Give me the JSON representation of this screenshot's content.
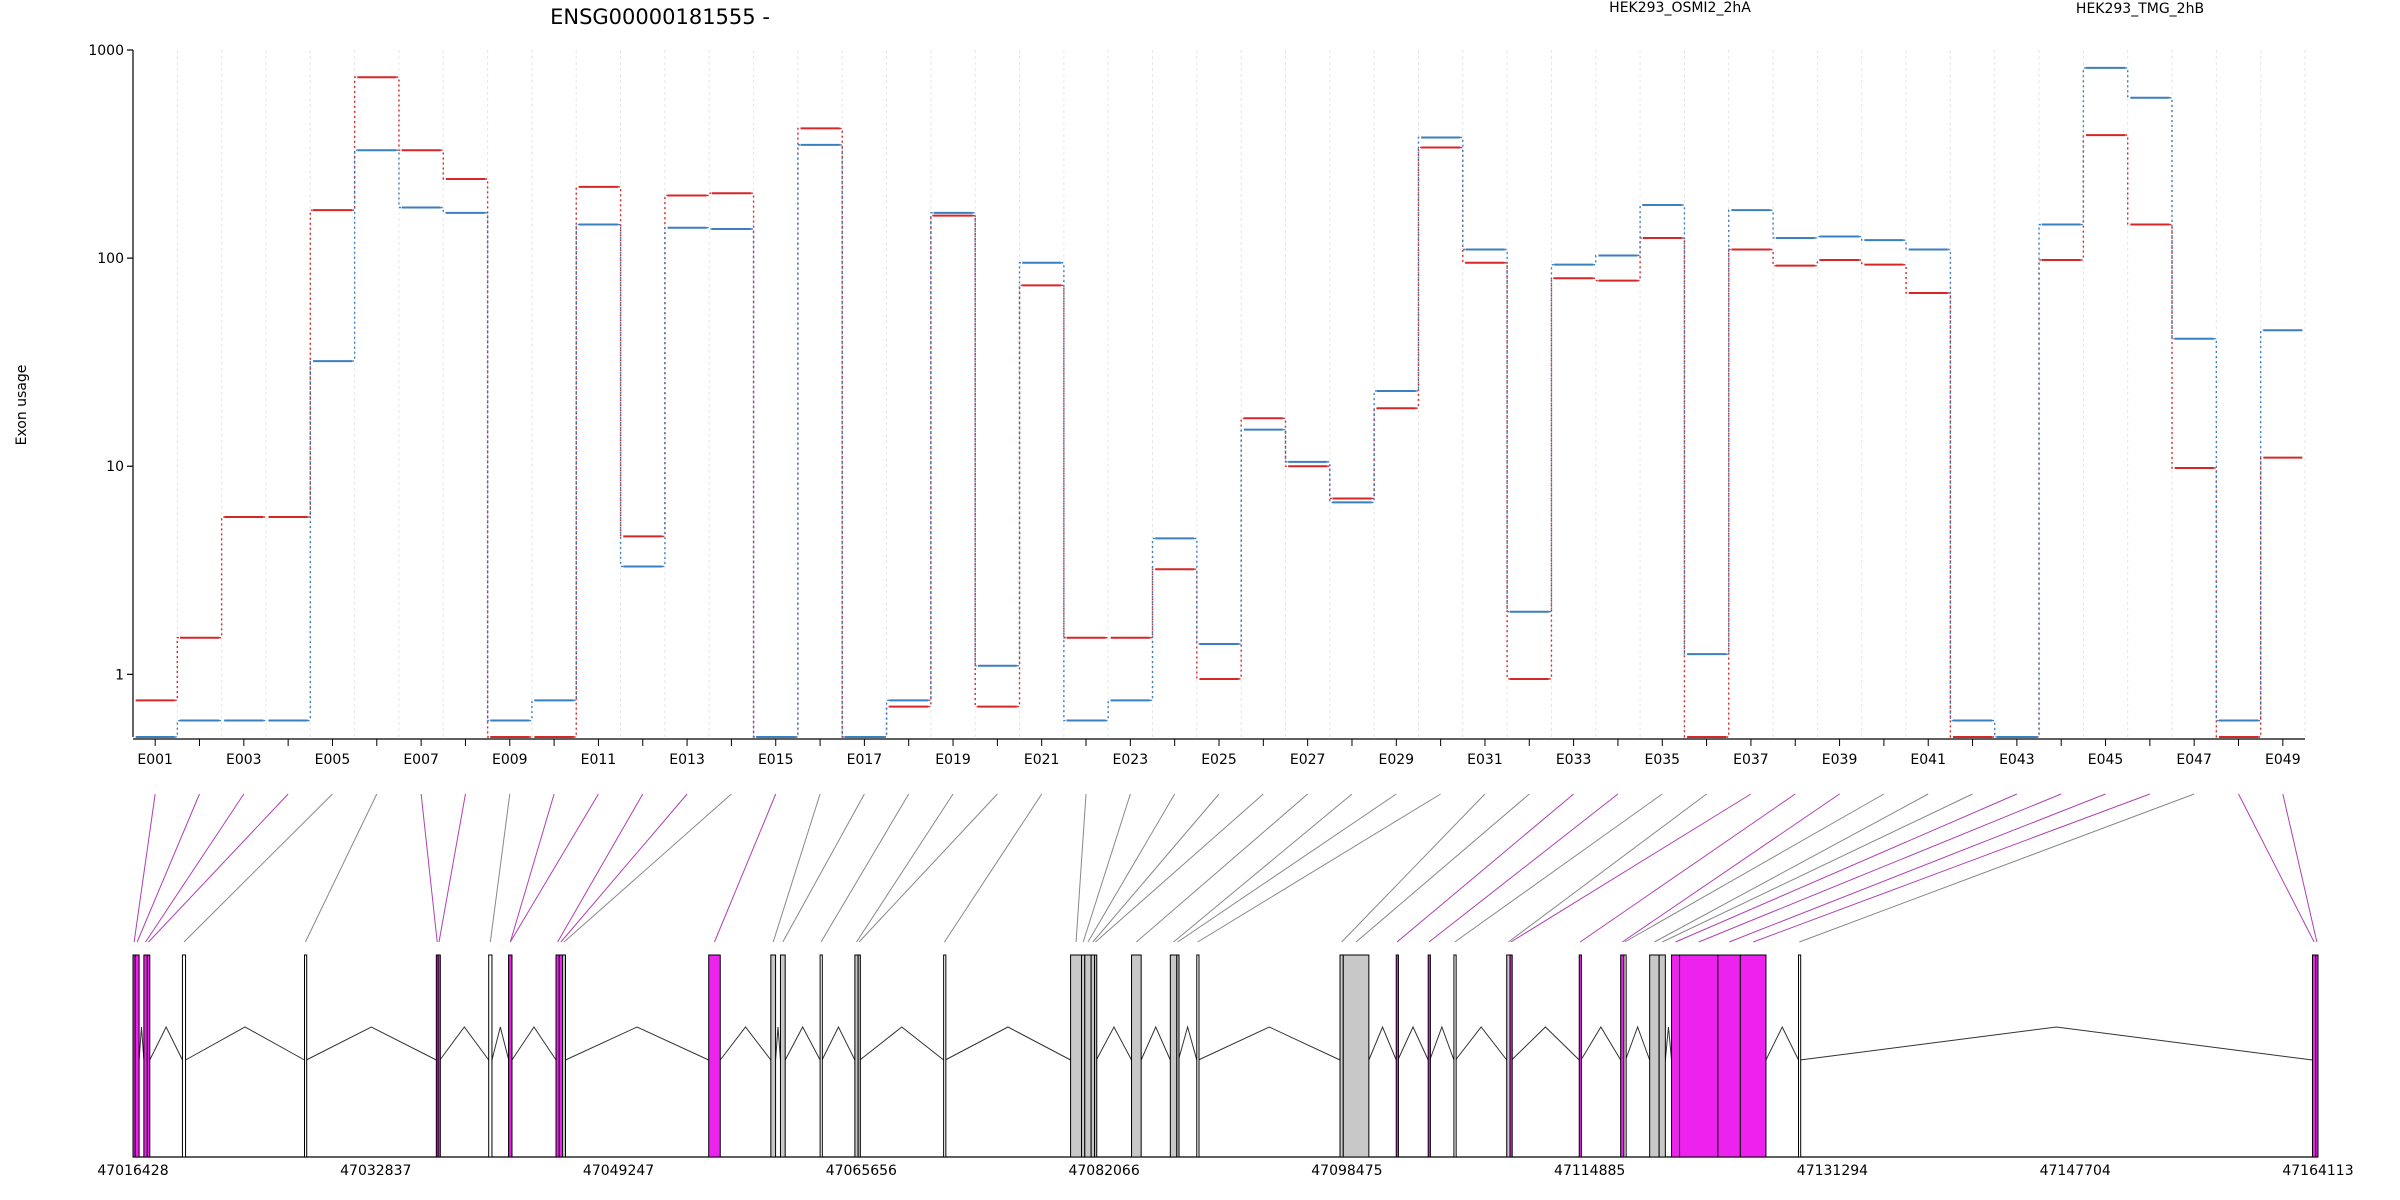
{
  "title": "ENSG00000181555 -",
  "ylabel": "Exon usage",
  "colors": {
    "series_a": "#d62728",
    "series_b": "#3a7fc0",
    "gray_line": "#888888",
    "magenta_line": "#b040b0",
    "exon_gray": "#c8c8c8",
    "exon_magenta": "#ee22ee"
  },
  "chart_data": {
    "type": "line",
    "scale": "log",
    "ylim": [
      0.5,
      1000
    ],
    "y_ticks": [
      {
        "value": 1,
        "label": "1"
      },
      {
        "value": 10,
        "label": "10"
      },
      {
        "value": 100,
        "label": "100"
      },
      {
        "value": 1000,
        "label": "1000"
      }
    ],
    "categories": [
      "E001",
      "E002",
      "E003",
      "E004",
      "E005",
      "E006",
      "E007",
      "E008",
      "E009",
      "E010",
      "E011",
      "E012",
      "E013",
      "E014",
      "E015",
      "E016",
      "E017",
      "E018",
      "E019",
      "E020",
      "E021",
      "E022",
      "E023",
      "E024",
      "E025",
      "E026",
      "E027",
      "E028",
      "E029",
      "E030",
      "E031",
      "E032",
      "E033",
      "E034",
      "E035",
      "E036",
      "E037",
      "E038",
      "E039",
      "E040",
      "E041",
      "E042",
      "E043",
      "E044",
      "E045",
      "E046",
      "E047",
      "E048",
      "E049"
    ],
    "x_tick_labels": [
      "E001",
      "E003",
      "E005",
      "E007",
      "E009",
      "E011",
      "E013",
      "E015",
      "E017",
      "E019",
      "E021",
      "E023",
      "E025",
      "E027",
      "E029",
      "E031",
      "E033",
      "E035",
      "E037",
      "E039",
      "E041",
      "E043",
      "E045",
      "E047",
      "E049"
    ],
    "series": [
      {
        "name": "HEK293_OSMI2_2hA",
        "color": "#d62728",
        "values": [
          0.75,
          1.5,
          5.7,
          5.7,
          170,
          740,
          330,
          240,
          0.5,
          0.5,
          220,
          4.6,
          200,
          205,
          0.5,
          420,
          0.5,
          0.7,
          160,
          0.7,
          74,
          1.5,
          1.5,
          3.2,
          0.95,
          17,
          10,
          7,
          19,
          340,
          95,
          0.95,
          80,
          78,
          125,
          0.5,
          110,
          92,
          98,
          93,
          68,
          0.5,
          0.5,
          98,
          390,
          145,
          9.8,
          0.5,
          11
        ]
      },
      {
        "name": "HEK293_TMG_2hB",
        "color": "#3a7fc0",
        "values": [
          0.5,
          0.6,
          0.6,
          0.6,
          32,
          330,
          175,
          165,
          0.6,
          0.75,
          145,
          3.3,
          140,
          138,
          0.5,
          350,
          0.5,
          0.75,
          165,
          1.1,
          95,
          0.6,
          0.75,
          4.5,
          1.4,
          15,
          10.5,
          6.7,
          23,
          380,
          110,
          2.0,
          93,
          103,
          180,
          1.25,
          170,
          125,
          127,
          122,
          110,
          0.6,
          0.5,
          145,
          820,
          590,
          41,
          0.6,
          45
        ]
      }
    ]
  },
  "gene_model": {
    "coord_labels": [
      "47016428",
      "47032837",
      "47049247",
      "47065656",
      "47082066",
      "47098475",
      "47114885",
      "47131294",
      "47147704",
      "47164113"
    ],
    "genomic_start": 47016428,
    "genomic_end": 47164113,
    "exons": [
      {
        "name": "E001",
        "start": 47016428,
        "end": 47016578,
        "state": "magenta"
      },
      {
        "name": "E002",
        "start": 47016578,
        "end": 47016840,
        "state": "magenta"
      },
      {
        "name": "E003",
        "start": 47017163,
        "end": 47017393,
        "state": "magenta"
      },
      {
        "name": "E004",
        "start": 47017393,
        "end": 47017563,
        "state": "magenta"
      },
      {
        "name": "E005",
        "start": 47019770,
        "end": 47019980,
        "state": "none"
      },
      {
        "name": "E006",
        "start": 47028020,
        "end": 47028140,
        "state": "none"
      },
      {
        "name": "E007",
        "start": 47036930,
        "end": 47037050,
        "state": "magenta"
      },
      {
        "name": "E008",
        "start": 47037050,
        "end": 47037170,
        "state": "magenta"
      },
      {
        "name": "E009",
        "start": 47040470,
        "end": 47040690,
        "state": "none"
      },
      {
        "name": "E010",
        "start": 47041820,
        "end": 47042040,
        "state": "magenta"
      },
      {
        "name": "E011",
        "start": 47041820,
        "end": 47042040,
        "state": "magenta"
      },
      {
        "name": "E012",
        "start": 47045020,
        "end": 47045240,
        "state": "magenta"
      },
      {
        "name": "E013",
        "start": 47045240,
        "end": 47045460,
        "state": "magenta"
      },
      {
        "name": "E014",
        "start": 47045460,
        "end": 47045660,
        "state": "gray"
      },
      {
        "name": "E015",
        "start": 47055340,
        "end": 47056120,
        "state": "magenta"
      },
      {
        "name": "E016",
        "start": 47059540,
        "end": 47059860,
        "state": "gray"
      },
      {
        "name": "E017",
        "start": 47060190,
        "end": 47060510,
        "state": "gray"
      },
      {
        "name": "E018",
        "start": 47062870,
        "end": 47063000,
        "state": "none"
      },
      {
        "name": "E019",
        "start": 47065220,
        "end": 47065440,
        "state": "gray"
      },
      {
        "name": "E020",
        "start": 47065440,
        "end": 47065560,
        "state": "gray"
      },
      {
        "name": "E021",
        "start": 47071220,
        "end": 47071330,
        "state": "none"
      },
      {
        "name": "E022",
        "start": 47079800,
        "end": 47080540,
        "state": "gray"
      },
      {
        "name": "E023",
        "start": 47080540,
        "end": 47080760,
        "state": "gray"
      },
      {
        "name": "E024",
        "start": 47080760,
        "end": 47081190,
        "state": "gray"
      },
      {
        "name": "E025",
        "start": 47081190,
        "end": 47081420,
        "state": "gray"
      },
      {
        "name": "E026",
        "start": 47081420,
        "end": 47081540,
        "state": "gray"
      },
      {
        "name": "E027",
        "start": 47083920,
        "end": 47084570,
        "state": "gray"
      },
      {
        "name": "E028",
        "start": 47086540,
        "end": 47086980,
        "state": "gray"
      },
      {
        "name": "E029",
        "start": 47086980,
        "end": 47087090,
        "state": "gray"
      },
      {
        "name": "E030",
        "start": 47088330,
        "end": 47088440,
        "state": "none"
      },
      {
        "name": "E031",
        "start": 47098010,
        "end": 47098230,
        "state": "gray"
      },
      {
        "name": "E032",
        "start": 47098230,
        "end": 47099960,
        "state": "gray"
      },
      {
        "name": "E033",
        "start": 47101810,
        "end": 47101920,
        "state": "magenta"
      },
      {
        "name": "E034",
        "start": 47103970,
        "end": 47104080,
        "state": "magenta"
      },
      {
        "name": "E035",
        "start": 47105710,
        "end": 47105820,
        "state": "none"
      },
      {
        "name": "E036",
        "start": 47109280,
        "end": 47109500,
        "state": "gray"
      },
      {
        "name": "E037",
        "start": 47109500,
        "end": 47109610,
        "state": "magenta"
      },
      {
        "name": "E038",
        "start": 47114180,
        "end": 47114300,
        "state": "magenta"
      },
      {
        "name": "E039",
        "start": 47116980,
        "end": 47117200,
        "state": "magenta"
      },
      {
        "name": "E040",
        "start": 47117200,
        "end": 47117310,
        "state": "none"
      },
      {
        "name": "E041",
        "start": 47118940,
        "end": 47119580,
        "state": "gray"
      },
      {
        "name": "E042",
        "start": 47119580,
        "end": 47120000,
        "state": "gray"
      },
      {
        "name": "E043",
        "start": 47120420,
        "end": 47120960,
        "state": "magenta"
      },
      {
        "name": "E044",
        "start": 47120960,
        "end": 47123550,
        "state": "magenta"
      },
      {
        "name": "E045",
        "start": 47123550,
        "end": 47125070,
        "state": "magenta"
      },
      {
        "name": "E046",
        "start": 47125070,
        "end": 47126800,
        "state": "magenta"
      },
      {
        "name": "E047",
        "start": 47129000,
        "end": 47129110,
        "state": "none"
      },
      {
        "name": "E048",
        "start": 47163740,
        "end": 47163960,
        "state": "magenta"
      },
      {
        "name": "E049",
        "start": 47163960,
        "end": 47164113,
        "state": "magenta"
      }
    ]
  }
}
